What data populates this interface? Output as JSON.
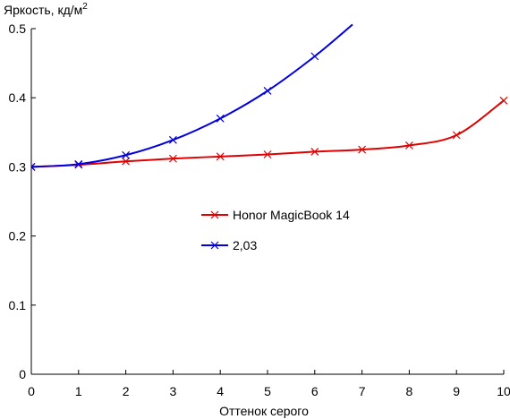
{
  "chart_data": {
    "type": "line",
    "ylabel_main": "Яркость, кд/м",
    "ylabel_sup": "2",
    "xlabel": "Оттенок серого",
    "xlim": [
      0,
      10
    ],
    "ylim": [
      0,
      0.5
    ],
    "x_ticks": [
      "0",
      "1",
      "2",
      "3",
      "4",
      "5",
      "6",
      "7",
      "8",
      "9",
      "10"
    ],
    "y_ticks": [
      "0",
      "0.1",
      "0.2",
      "0.3",
      "0.4",
      "0.5"
    ],
    "grid": false,
    "legend_position": "center",
    "series": [
      {
        "name": "Honor MagicBook 14",
        "color": "#e00000",
        "x": [
          0,
          1,
          2,
          3,
          4,
          5,
          6,
          7,
          8,
          9,
          10
        ],
        "values": [
          0.3,
          0.303,
          0.308,
          0.312,
          0.315,
          0.318,
          0.322,
          0.325,
          0.331,
          0.346,
          0.396
        ]
      },
      {
        "name": "2,03",
        "color": "#0000e0",
        "x": [
          0,
          1,
          2,
          3,
          4,
          5,
          6,
          6.8
        ],
        "values": [
          0.3,
          0.304,
          0.317,
          0.339,
          0.37,
          0.41,
          0.46,
          0.506
        ]
      }
    ]
  }
}
